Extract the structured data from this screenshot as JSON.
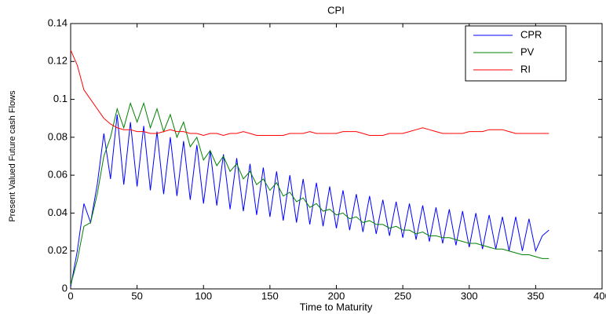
{
  "chart_data": {
    "type": "line",
    "title": "CPI",
    "x_label": "Time to Maturity",
    "y_label": "Present Valued Future cash Flows",
    "x": [
      0,
      5,
      10,
      15,
      20,
      25,
      30,
      35,
      40,
      45,
      50,
      55,
      60,
      65,
      70,
      75,
      80,
      85,
      90,
      95,
      100,
      105,
      110,
      115,
      120,
      125,
      130,
      135,
      140,
      145,
      150,
      155,
      160,
      165,
      170,
      175,
      180,
      185,
      190,
      195,
      200,
      205,
      210,
      215,
      220,
      225,
      230,
      235,
      240,
      245,
      250,
      255,
      260,
      265,
      270,
      275,
      280,
      285,
      290,
      295,
      300,
      305,
      310,
      315,
      320,
      325,
      330,
      335,
      340,
      345,
      350,
      355,
      360
    ],
    "series": [
      {
        "name": "CPR",
        "color": "#0000ff",
        "values": [
          0.001,
          0.02,
          0.045,
          0.035,
          0.055,
          0.082,
          0.058,
          0.092,
          0.055,
          0.088,
          0.054,
          0.086,
          0.052,
          0.083,
          0.05,
          0.08,
          0.049,
          0.078,
          0.047,
          0.076,
          0.045,
          0.073,
          0.044,
          0.071,
          0.042,
          0.069,
          0.041,
          0.066,
          0.039,
          0.064,
          0.038,
          0.062,
          0.036,
          0.06,
          0.035,
          0.058,
          0.034,
          0.056,
          0.033,
          0.054,
          0.032,
          0.052,
          0.031,
          0.05,
          0.03,
          0.049,
          0.029,
          0.047,
          0.028,
          0.046,
          0.027,
          0.045,
          0.026,
          0.044,
          0.025,
          0.043,
          0.024,
          0.042,
          0.023,
          0.041,
          0.022,
          0.04,
          0.021,
          0.039,
          0.021,
          0.038,
          0.02,
          0.038,
          0.02,
          0.037,
          0.02,
          0.028,
          0.031
        ]
      },
      {
        "name": "PV",
        "color": "#008000",
        "values": [
          0.002,
          0.015,
          0.033,
          0.035,
          0.05,
          0.07,
          0.08,
          0.095,
          0.085,
          0.098,
          0.088,
          0.098,
          0.085,
          0.095,
          0.083,
          0.092,
          0.08,
          0.088,
          0.075,
          0.08,
          0.068,
          0.073,
          0.065,
          0.07,
          0.062,
          0.066,
          0.058,
          0.062,
          0.055,
          0.058,
          0.052,
          0.056,
          0.049,
          0.051,
          0.046,
          0.048,
          0.043,
          0.045,
          0.041,
          0.042,
          0.039,
          0.04,
          0.037,
          0.038,
          0.035,
          0.036,
          0.034,
          0.034,
          0.032,
          0.033,
          0.031,
          0.031,
          0.029,
          0.03,
          0.028,
          0.028,
          0.027,
          0.027,
          0.026,
          0.025,
          0.024,
          0.024,
          0.023,
          0.022,
          0.021,
          0.021,
          0.02,
          0.019,
          0.018,
          0.018,
          0.017,
          0.016,
          0.016
        ]
      },
      {
        "name": "RI",
        "color": "#ff0000",
        "values": [
          0.126,
          0.118,
          0.105,
          0.1,
          0.095,
          0.09,
          0.087,
          0.085,
          0.084,
          0.084,
          0.083,
          0.083,
          0.082,
          0.082,
          0.083,
          0.084,
          0.083,
          0.083,
          0.082,
          0.082,
          0.081,
          0.082,
          0.082,
          0.081,
          0.082,
          0.082,
          0.083,
          0.082,
          0.081,
          0.081,
          0.081,
          0.081,
          0.081,
          0.082,
          0.082,
          0.082,
          0.083,
          0.082,
          0.082,
          0.082,
          0.082,
          0.083,
          0.083,
          0.083,
          0.082,
          0.081,
          0.081,
          0.081,
          0.082,
          0.082,
          0.082,
          0.083,
          0.084,
          0.085,
          0.084,
          0.083,
          0.082,
          0.082,
          0.082,
          0.082,
          0.083,
          0.083,
          0.083,
          0.084,
          0.084,
          0.084,
          0.083,
          0.082,
          0.082,
          0.082,
          0.082,
          0.082,
          0.082
        ]
      }
    ],
    "xlim": [
      0,
      400
    ],
    "xticks": [
      0,
      50,
      100,
      150,
      200,
      250,
      300,
      350,
      400
    ],
    "ylim": [
      0,
      0.14
    ],
    "yticks": [
      0,
      0.02,
      0.04,
      0.06,
      0.08,
      0.1,
      0.12,
      0.14
    ],
    "legend": "upper right"
  }
}
